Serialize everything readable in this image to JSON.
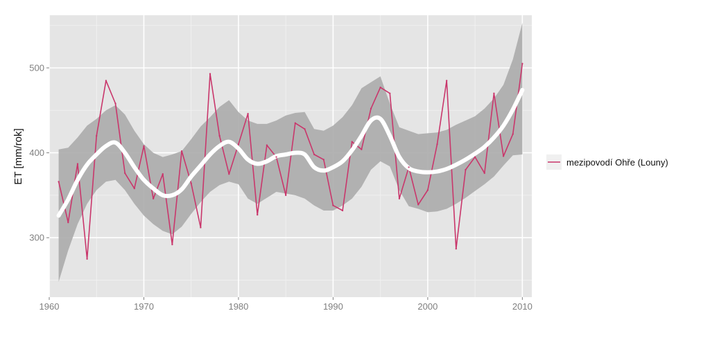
{
  "chart_data": {
    "type": "line",
    "title": "",
    "xlabel": "",
    "ylabel": "ET [mm/rok]",
    "xlim": [
      1960,
      2011
    ],
    "ylim": [
      230,
      562
    ],
    "x_ticks": [
      1960,
      1970,
      1980,
      1990,
      2000,
      2010
    ],
    "y_ticks": [
      300,
      400,
      500
    ],
    "grid": true,
    "legend_position": "right",
    "colors": {
      "panel": "#e5e5e5",
      "grid": "#ffffff",
      "series": "#c9366b",
      "ribbon": "#ababab",
      "smooth": "#ffffff"
    },
    "series": [
      {
        "name": "mezipovodí Ohře (Louny)",
        "x": [
          1961,
          1962,
          1963,
          1964,
          1965,
          1966,
          1967,
          1968,
          1969,
          1970,
          1971,
          1972,
          1973,
          1974,
          1975,
          1976,
          1977,
          1978,
          1979,
          1980,
          1981,
          1982,
          1983,
          1984,
          1985,
          1986,
          1987,
          1988,
          1989,
          1990,
          1991,
          1992,
          1993,
          1994,
          1995,
          1996,
          1997,
          1998,
          1999,
          2000,
          2001,
          2002,
          2003,
          2004,
          2005,
          2006,
          2007,
          2008,
          2009,
          2010
        ],
        "values": [
          366,
          318,
          387,
          275,
          420,
          485,
          458,
          376,
          358,
          408,
          346,
          375,
          292,
          402,
          364,
          312,
          493,
          420,
          375,
          410,
          446,
          327,
          409,
          395,
          350,
          435,
          428,
          398,
          392,
          338,
          332,
          413,
          404,
          452,
          477,
          470,
          346,
          383,
          339,
          356,
          410,
          485,
          287,
          380,
          395,
          376,
          470,
          396,
          422,
          505
        ]
      }
    ],
    "smooth": {
      "x": [
        1961,
        1962,
        1963,
        1964,
        1965,
        1966,
        1967,
        1968,
        1969,
        1970,
        1971,
        1972,
        1973,
        1974,
        1975,
        1976,
        1977,
        1978,
        1979,
        1980,
        1981,
        1982,
        1983,
        1984,
        1985,
        1986,
        1987,
        1988,
        1989,
        1990,
        1991,
        1992,
        1993,
        1994,
        1995,
        1996,
        1997,
        1998,
        1999,
        2000,
        2001,
        2002,
        2003,
        2004,
        2005,
        2006,
        2007,
        2008,
        2009,
        2010
      ],
      "fit": [
        326,
        345,
        368,
        386,
        398,
        408,
        412,
        400,
        383,
        368,
        358,
        350,
        350,
        357,
        372,
        385,
        398,
        408,
        413,
        405,
        392,
        387,
        390,
        396,
        398,
        400,
        398,
        383,
        379,
        383,
        390,
        403,
        420,
        438,
        440,
        420,
        395,
        382,
        378,
        377,
        378,
        381,
        386,
        392,
        399,
        407,
        418,
        432,
        451,
        474
      ],
      "lower": [
        248,
        285,
        316,
        340,
        356,
        366,
        368,
        356,
        340,
        326,
        316,
        308,
        304,
        313,
        328,
        342,
        354,
        362,
        366,
        363,
        346,
        340,
        347,
        354,
        352,
        350,
        346,
        338,
        332,
        332,
        338,
        346,
        360,
        380,
        390,
        384,
        356,
        337,
        334,
        330,
        331,
        334,
        340,
        347,
        355,
        363,
        372,
        385,
        397,
        398
      ],
      "upper": [
        404,
        406,
        418,
        432,
        440,
        450,
        456,
        445,
        426,
        410,
        400,
        395,
        398,
        402,
        416,
        431,
        442,
        454,
        462,
        448,
        438,
        434,
        434,
        438,
        444,
        447,
        448,
        428,
        426,
        432,
        442,
        456,
        476,
        483,
        490,
        458,
        430,
        426,
        422,
        423,
        424,
        427,
        433,
        438,
        443,
        452,
        464,
        480,
        510,
        553
      ]
    }
  }
}
